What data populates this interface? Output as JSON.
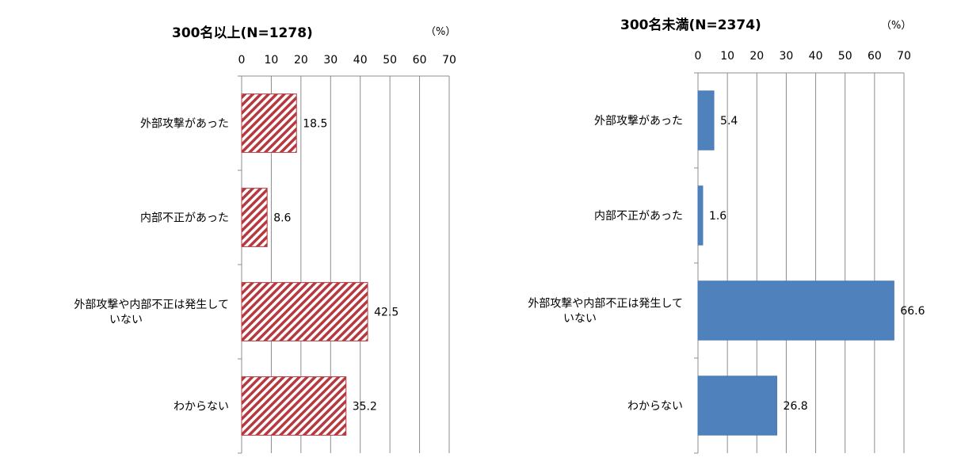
{
  "chart_data": [
    {
      "type": "bar",
      "orientation": "horizontal",
      "title": "300名以上(N=1278)",
      "unit_label": "（%）",
      "xlim": [
        0,
        70
      ],
      "ticks": [
        0,
        10,
        20,
        30,
        40,
        50,
        60,
        70
      ],
      "grid": true,
      "categories": [
        "外部攻撃があった",
        "内部不正があった",
        "外部攻撃や内部不正は発生していない",
        "わからない"
      ],
      "category_lines": [
        [
          "外部攻撃があった"
        ],
        [
          "内部不正があった"
        ],
        [
          "外部攻撃や内部不正は発生して",
          "いない"
        ],
        [
          "わからない"
        ]
      ],
      "values": [
        18.5,
        8.6,
        42.5,
        35.2
      ],
      "value_labels": [
        "18.5",
        "8.6",
        "42.5",
        "35.2"
      ],
      "fill": "hatched",
      "color": "#b5393f"
    },
    {
      "type": "bar",
      "orientation": "horizontal",
      "title": "300名未満(N=2374)",
      "unit_label": "（%）",
      "xlim": [
        0,
        70
      ],
      "ticks": [
        0,
        10,
        20,
        30,
        40,
        50,
        60,
        70
      ],
      "grid": true,
      "categories": [
        "外部攻撃があった",
        "内部不正があった",
        "外部攻撃や内部不正は発生していない",
        "わからない"
      ],
      "category_lines": [
        [
          "外部攻撃があった"
        ],
        [
          "内部不正があった"
        ],
        [
          "外部攻撃や内部不正は発生して",
          "いない"
        ],
        [
          "わからない"
        ]
      ],
      "values": [
        5.4,
        1.6,
        66.6,
        26.8
      ],
      "value_labels": [
        "5.4",
        "1.6",
        "66.6",
        "26.8"
      ],
      "fill": "solid",
      "color": "#4f81bd"
    }
  ]
}
